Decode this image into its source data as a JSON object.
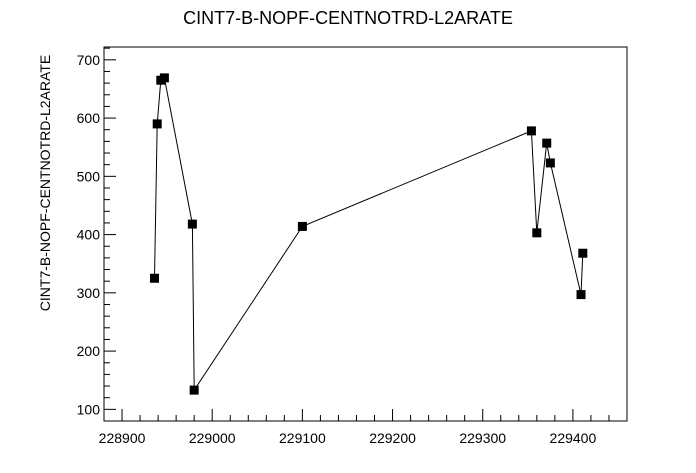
{
  "chart_data": {
    "type": "line",
    "title": "CINT7-B-NOPF-CENTNOTRD-L2ARATE",
    "xlabel": "",
    "ylabel": "CINT7-B-NOPF-CENTNOTRD-L2ARATE",
    "xlim": [
      228880,
      229460
    ],
    "ylim": [
      80,
      722
    ],
    "x_ticks": [
      228900,
      229000,
      229100,
      229200,
      229300,
      229400
    ],
    "x_tick_labels": [
      "228900",
      "229000",
      "229100",
      "229200",
      "229300",
      "229400"
    ],
    "y_ticks": [
      100,
      200,
      300,
      400,
      500,
      600,
      700
    ],
    "y_tick_labels": [
      "100",
      "200",
      "300",
      "400",
      "500",
      "600",
      "700"
    ],
    "grid": false,
    "legend": "none",
    "marker": "square",
    "line_color": "#000000",
    "marker_color": "#000000",
    "series": [
      {
        "x": [
          228936,
          228939,
          228943,
          228947,
          228978,
          228980,
          229100,
          229354,
          229360,
          229371,
          229375,
          229409,
          229411
        ],
        "y": [
          325,
          590,
          665,
          669,
          418,
          133,
          414,
          578,
          403,
          557,
          523,
          297,
          368
        ]
      }
    ]
  }
}
